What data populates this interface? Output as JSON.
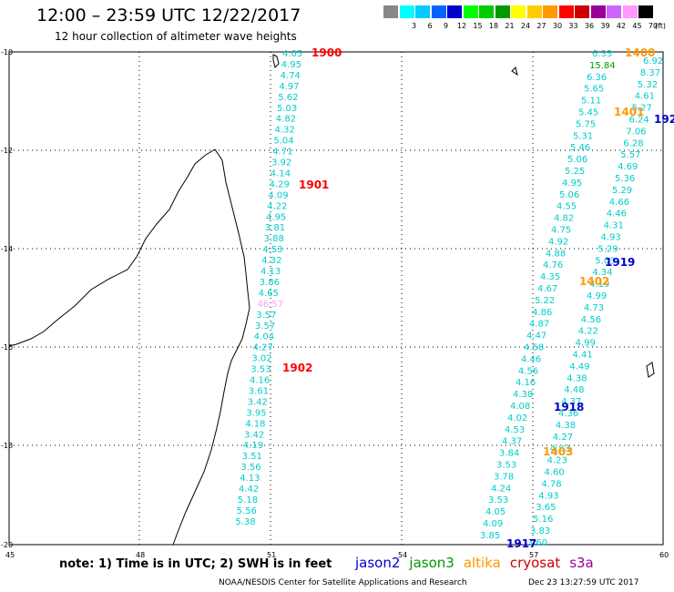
{
  "header": {
    "title": "12:00 – 23:59 UTC 12/22/2017",
    "subtitle": "12 hour collection of altimeter wave heights"
  },
  "legend": {
    "colors": [
      "#888888",
      "#00ffff",
      "#00ccff",
      "#0066ff",
      "#0000cc",
      "#00ff00",
      "#00cc00",
      "#009900",
      "#ffff00",
      "#ffcc00",
      "#ff9900",
      "#ff0000",
      "#cc0000",
      "#990099",
      "#cc66ff",
      "#ff99ff",
      "#000000"
    ],
    "labels": [
      "",
      "3",
      "6",
      "9",
      "12",
      "15",
      "18",
      "21",
      "24",
      "27",
      "30",
      "33",
      "36",
      "39",
      "42",
      "45",
      "70"
    ],
    "unit": "(ft)"
  },
  "map": {
    "lat_ticks": [
      "-10",
      "-12",
      "-14",
      "-16",
      "-18",
      "-20"
    ],
    "lon_ticks": [
      "45",
      "48",
      "51",
      "54",
      "57",
      "60"
    ]
  },
  "tracks": [
    {
      "label": "1900",
      "color": "#ff0000",
      "values": [
        "4.05",
        "4.95",
        "4.74",
        "4.97",
        "5.62",
        "5.03",
        "4.82",
        "4.32",
        "5.04",
        "4.71",
        "3.92",
        "4.14",
        "4.29",
        "4.09",
        "4.22",
        "4.95",
        "3.81",
        "3.88",
        "4.53",
        "4.32",
        "4.13",
        "3.86",
        "4.65",
        "46.57",
        "3.57",
        "3.57",
        "4.04",
        "4.27",
        "3.02",
        "3.53",
        "4.16",
        "3.61",
        "3.42",
        "3.95",
        "4.18",
        "3.42",
        "4.19",
        "3.51",
        "3.56",
        "4.13",
        "4.42",
        "5.18",
        "5.56",
        "5.38"
      ]
    },
    {
      "label": "1901",
      "color": "#ff0000"
    },
    {
      "label": "1902",
      "color": "#ff0000"
    },
    {
      "label": "1400",
      "color": "#ff9900"
    },
    {
      "label": "1401",
      "color": "#ff9900"
    },
    {
      "label": "1402",
      "color": "#ff9900"
    },
    {
      "label": "1403",
      "color": "#ff9900"
    },
    {
      "label": "1919",
      "color": "#0000cc"
    },
    {
      "label": "1918",
      "color": "#0000cc"
    },
    {
      "label": "1917",
      "color": "#0000cc"
    },
    {
      "label": "192",
      "color": "#0000cc"
    }
  ],
  "east_values": [
    "6.33",
    "15.84",
    "6.36",
    "5.65",
    "5.11",
    "5.45",
    "5.75",
    "5.31",
    "5.46",
    "5.06",
    "5.25",
    "4.95",
    "5.06",
    "4.55",
    "4.82",
    "4.75",
    "4.92",
    "4.88",
    "4.76",
    "4.35",
    "4.67",
    "5.22",
    "4.86",
    "4.87",
    "4.47",
    "4.58",
    "4.46",
    "4.56",
    "4.16",
    "4.38",
    "4.08",
    "4.02",
    "4.53",
    "4.37",
    "3.84",
    "3.53",
    "3.78",
    "4.24",
    "3.53",
    "4.05",
    "4.09",
    "3.85"
  ],
  "east_values_2": [
    "6.92",
    "8.37",
    "5.32",
    "4.61",
    "5.27",
    "6.24",
    "7.06",
    "6.28",
    "5.57",
    "4.69",
    "5.36",
    "5.29",
    "4.66",
    "4.46",
    "4.31",
    "4.93",
    "5.29",
    "5.03",
    "4.34",
    "4.19",
    "4.99",
    "4.73",
    "4.56",
    "4.22",
    "4.99",
    "4.41",
    "4.49",
    "4.38",
    "4.48",
    "4.37",
    "4.36",
    "4.38",
    "4.27",
    "4.83",
    "4.23",
    "4.60",
    "4.78",
    "4.93",
    "3.65",
    "5.16",
    "3.83",
    "3.60"
  ],
  "east_odd": [
    "6.24"
  ],
  "footer": {
    "note": "note:  1) Time is in UTC;  2) SWH is in feet",
    "satellites": [
      {
        "name": "jason2",
        "color": "#0000cc"
      },
      {
        "name": "jason3",
        "color": "#009900"
      },
      {
        "name": "altika",
        "color": "#ff9900"
      },
      {
        "name": "cryosat",
        "color": "#cc0000"
      },
      {
        "name": "s3a",
        "color": "#990099"
      }
    ],
    "credit": "NOAA/NESDIS Center for Satellite Applications and Research",
    "timestamp": "Dec 23 13:27:59 UTC 2017"
  }
}
